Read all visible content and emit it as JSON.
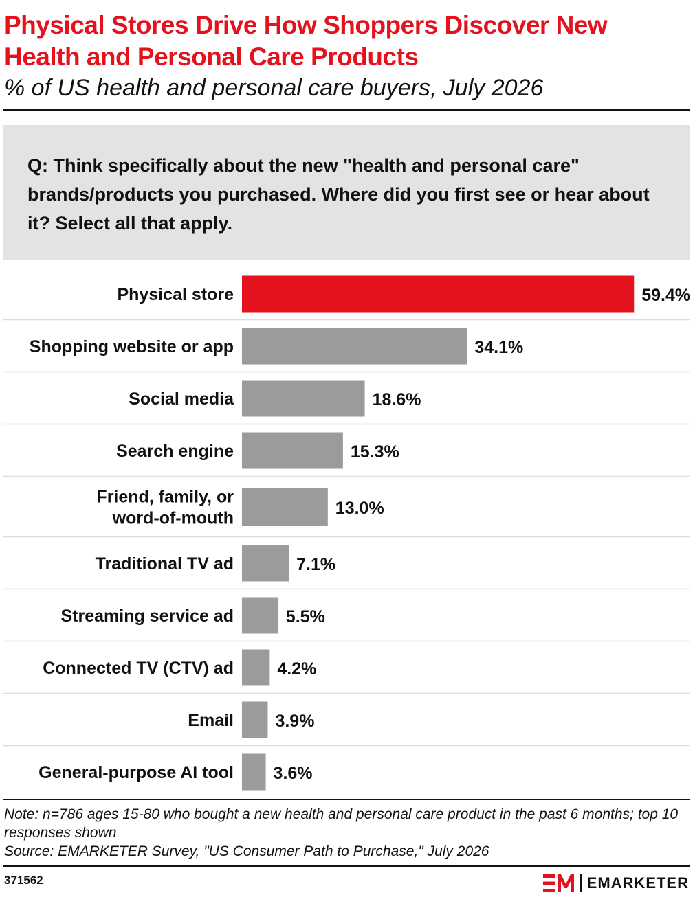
{
  "header": {
    "title": "Physical Stores Drive How Shoppers Discover New Health and Personal Care Products",
    "subtitle": "% of US health and personal care buyers, July 2026"
  },
  "question": "Q: Think specifically about the new \"health and personal care\" brands/products you purchased. Where did you first see or hear about it? Select all that apply.",
  "chart_data": {
    "type": "bar",
    "orientation": "horizontal",
    "categories": [
      "Physical store",
      "Shopping website or app",
      "Social media",
      "Search engine",
      "Friend, family, or word-of-mouth",
      "Traditional TV ad",
      "Streaming service ad",
      "Connected TV (CTV) ad",
      "Email",
      "General-purpose AI tool"
    ],
    "values": [
      59.4,
      34.1,
      18.6,
      15.3,
      13.0,
      7.1,
      5.5,
      4.2,
      3.9,
      3.6
    ],
    "value_labels": [
      "59.4%",
      "34.1%",
      "18.6%",
      "15.3%",
      "13.0%",
      "7.1%",
      "5.5%",
      "4.2%",
      "3.9%",
      "3.6%"
    ],
    "highlight_index": 0,
    "unit": "%",
    "grid": false,
    "legend": "none",
    "colors": {
      "highlight": "#e4121d",
      "bar": "#9b9b9b",
      "separator": "#dcdcdc"
    }
  },
  "footer": {
    "note": "Note: n=786 ages 15-80 who bought a new health and personal care product in the past 6 months; top 10 responses shown",
    "source": "Source: EMARKETER Survey, \"US Consumer Path to Purchase,\" July 2026",
    "chart_id": "371562",
    "brand": "EMARKETER"
  }
}
